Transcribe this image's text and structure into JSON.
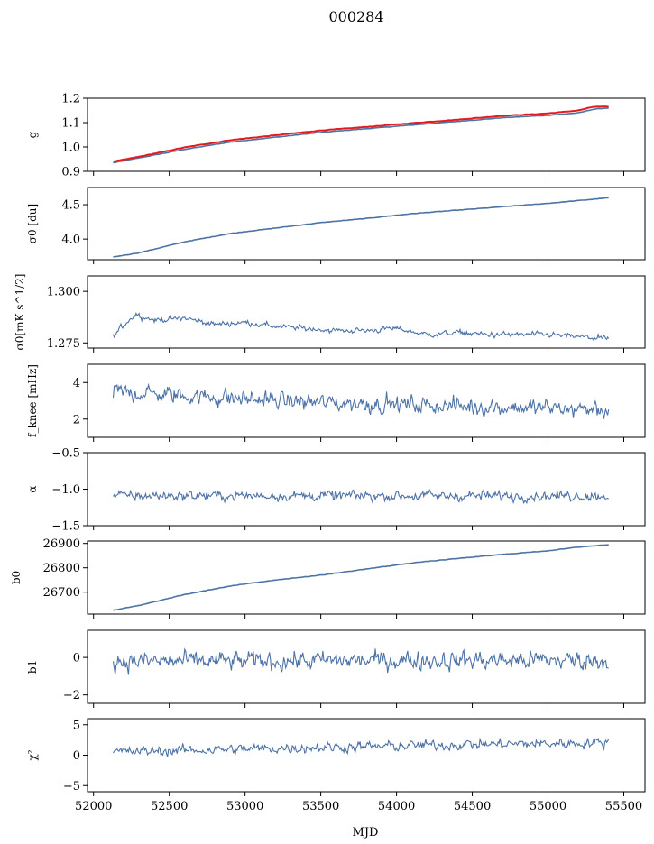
{
  "figure": {
    "title": "000284",
    "xlabel": "MJD"
  },
  "chart_data": [
    {
      "type": "line",
      "ylabel": "g",
      "xlim": [
        51960,
        55640
      ],
      "ylim": [
        0.9,
        1.2
      ],
      "yticks": [
        0.9,
        1.0,
        1.1,
        1.2
      ],
      "ytick_labels": [
        "0.9",
        "1.0",
        "1.1",
        "1.2"
      ],
      "series": [
        {
          "color": "#4c72a6",
          "kind": "smooth",
          "x": [
            52130,
            52300,
            52600,
            52900,
            53200,
            53500,
            53800,
            54100,
            54400,
            54700,
            55000,
            55200,
            55300,
            55400
          ],
          "y": [
            0.935,
            0.955,
            0.99,
            1.02,
            1.04,
            1.06,
            1.075,
            1.09,
            1.105,
            1.12,
            1.13,
            1.14,
            1.155,
            1.16
          ]
        },
        {
          "color": "#e41a1c",
          "kind": "smooth",
          "x": [
            52130,
            52300,
            52600,
            52900,
            53200,
            53500,
            53800,
            54100,
            54400,
            54700,
            55000,
            55200,
            55300,
            55400
          ],
          "y": [
            0.94,
            0.96,
            0.998,
            1.028,
            1.048,
            1.068,
            1.082,
            1.098,
            1.112,
            1.128,
            1.138,
            1.15,
            1.165,
            1.165
          ]
        }
      ]
    },
    {
      "type": "line",
      "ylabel": "σ0 [du]",
      "xlim": [
        51960,
        55640
      ],
      "ylim": [
        3.7,
        4.75
      ],
      "yticks": [
        4.0,
        4.5
      ],
      "ytick_labels": [
        "4.0",
        "4.5"
      ],
      "series": [
        {
          "color": "#4c72a6",
          "kind": "smooth",
          "x": [
            52130,
            52300,
            52600,
            52900,
            53200,
            53500,
            53800,
            54100,
            54400,
            54700,
            55000,
            55200,
            55400
          ],
          "y": [
            3.74,
            3.8,
            3.96,
            4.08,
            4.16,
            4.24,
            4.3,
            4.37,
            4.42,
            4.47,
            4.52,
            4.56,
            4.6
          ]
        }
      ]
    },
    {
      "type": "line",
      "ylabel": "σ0[mK s^1/2]",
      "xlim": [
        51960,
        55640
      ],
      "ylim": [
        1.2725,
        1.3075
      ],
      "yticks": [
        1.275,
        1.3
      ],
      "ytick_labels": [
        "1.275",
        "1.300"
      ],
      "series": [
        {
          "color": "#4c72a6",
          "kind": "noisy",
          "noise": 0.0012,
          "x": [
            52130,
            52200,
            52280,
            52400,
            52600,
            52800,
            53000,
            53200,
            53400,
            53600,
            53800,
            54000,
            54200,
            54400,
            54600,
            54800,
            55000,
            55200,
            55400
          ],
          "y": [
            1.278,
            1.284,
            1.289,
            1.286,
            1.287,
            1.284,
            1.285,
            1.283,
            1.282,
            1.281,
            1.281,
            1.282,
            1.279,
            1.28,
            1.279,
            1.279,
            1.279,
            1.278,
            1.277
          ]
        }
      ]
    },
    {
      "type": "line",
      "ylabel": "f_knee [mHz]",
      "xlim": [
        51960,
        55640
      ],
      "ylim": [
        1.0,
        5.0
      ],
      "yticks": [
        2,
        4
      ],
      "ytick_labels": [
        "2",
        "4"
      ],
      "series": [
        {
          "color": "#4c72a6",
          "kind": "noisy",
          "noise": 0.42,
          "x": [
            52130,
            52600,
            53000,
            53500,
            54000,
            54500,
            55000,
            55400
          ],
          "y": [
            3.5,
            3.3,
            3.1,
            2.9,
            2.8,
            2.7,
            2.6,
            2.5
          ]
        }
      ]
    },
    {
      "type": "line",
      "ylabel": "α",
      "xlim": [
        51960,
        55640
      ],
      "ylim": [
        -1.5,
        -0.5
      ],
      "yticks": [
        -1.5,
        -1.0,
        -0.5
      ],
      "ytick_labels": [
        "−1.5",
        "−1.0",
        "−0.5"
      ],
      "series": [
        {
          "color": "#4c72a6",
          "kind": "noisy",
          "noise": 0.06,
          "x": [
            52130,
            53000,
            54000,
            55000,
            55400
          ],
          "y": [
            -1.09,
            -1.09,
            -1.09,
            -1.09,
            -1.09
          ]
        }
      ]
    },
    {
      "type": "line",
      "ylabel": "b0",
      "xlim": [
        51960,
        55640
      ],
      "ylim": [
        26610,
        26910
      ],
      "yticks": [
        26700,
        26800,
        26900
      ],
      "ytick_labels": [
        "26700",
        "26800",
        "26900"
      ],
      "series": [
        {
          "color": "#4c72a6",
          "kind": "smooth",
          "x": [
            52130,
            52300,
            52600,
            52900,
            53200,
            53500,
            53800,
            54100,
            54400,
            54700,
            55000,
            55200,
            55400
          ],
          "y": [
            26626,
            26645,
            26690,
            26725,
            26750,
            26770,
            26795,
            26820,
            26838,
            26855,
            26870,
            26885,
            26895
          ]
        }
      ]
    },
    {
      "type": "line",
      "ylabel": "b1",
      "xlim": [
        51960,
        55640
      ],
      "ylim": [
        -2.45,
        1.45
      ],
      "yticks": [
        -2,
        0
      ],
      "ytick_labels": [
        "−2",
        "0"
      ],
      "series": [
        {
          "color": "#4c72a6",
          "kind": "noisy",
          "noise": 0.45,
          "x": [
            52130,
            53000,
            54000,
            55000,
            55400
          ],
          "y": [
            -0.2,
            -0.2,
            -0.15,
            -0.15,
            -0.15
          ]
        }
      ]
    },
    {
      "type": "line",
      "ylabel": "χ²",
      "xlim": [
        51960,
        55640
      ],
      "ylim": [
        -6.0,
        6.0
      ],
      "yticks": [
        -5,
        0,
        5
      ],
      "ytick_labels": [
        "−5",
        "0",
        "5"
      ],
      "series": [
        {
          "color": "#4c72a6",
          "kind": "noisy",
          "noise": 0.75,
          "x": [
            52130,
            52600,
            53000,
            53500,
            54000,
            54500,
            55000,
            55400
          ],
          "y": [
            0.5,
            0.8,
            1.0,
            1.3,
            1.5,
            1.8,
            1.9,
            2.1
          ]
        }
      ]
    }
  ],
  "xaxis": {
    "ticks": [
      52000,
      52500,
      53000,
      53500,
      54000,
      54500,
      55000,
      55500
    ],
    "tick_labels": [
      "52000",
      "52500",
      "53000",
      "53500",
      "54000",
      "54500",
      "55000",
      "55500"
    ]
  }
}
